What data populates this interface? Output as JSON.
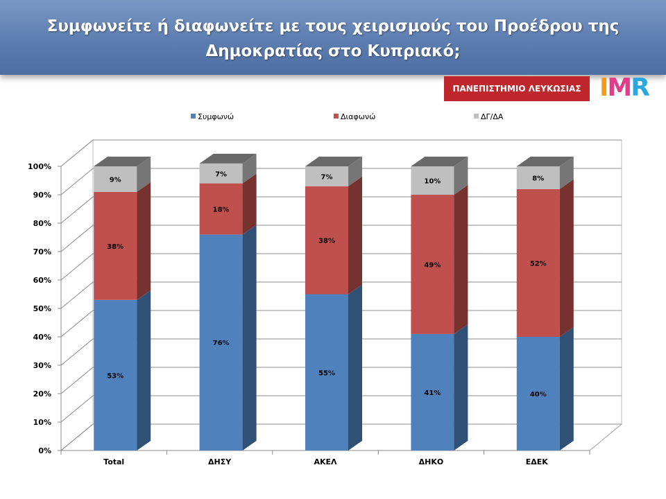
{
  "header": {
    "title_line1": "Συμφωνείτε ή διαφωνείτε με τους χειρισμούς του Προέδρου της",
    "title_line2": "Δημοκρατίας στο Κυπριακό;"
  },
  "logos": {
    "university": "ΠΑΝΕΠΙΣΤΗΜΙΟ ΛΕΥΚΩΣΙΑΣ",
    "imr": "IMR"
  },
  "colors": {
    "agree": "#4f81bd",
    "disagree": "#c0504d",
    "dk": "#bfbfbf"
  },
  "chart_data": {
    "type": "bar",
    "stacked": true,
    "three_d": true,
    "categories": [
      "Total",
      "ΔΗΣΥ",
      "ΑΚΕΛ",
      "ΔΗΚΟ",
      "ΕΔΕΚ"
    ],
    "series": [
      {
        "name": "Συμφωνώ",
        "values": [
          53,
          76,
          55,
          41,
          40
        ],
        "labels": [
          "53%",
          "76%",
          "55%",
          "41%",
          "40%"
        ]
      },
      {
        "name": "Διαφωνώ",
        "values": [
          38,
          18,
          38,
          49,
          52
        ],
        "labels": [
          "38%",
          "18%",
          "38%",
          "49%",
          "52%"
        ]
      },
      {
        "name": "ΔΓ/ΔΑ",
        "values": [
          9,
          7,
          7,
          10,
          8
        ],
        "labels": [
          "9%",
          "7%",
          "7%",
          "10%",
          "8%"
        ]
      }
    ],
    "y_ticks": [
      "0%",
      "10%",
      "20%",
      "30%",
      "40%",
      "50%",
      "60%",
      "70%",
      "80%",
      "90%",
      "100%"
    ],
    "ylim": [
      0,
      100
    ],
    "grid": true,
    "legend_position": "top"
  }
}
